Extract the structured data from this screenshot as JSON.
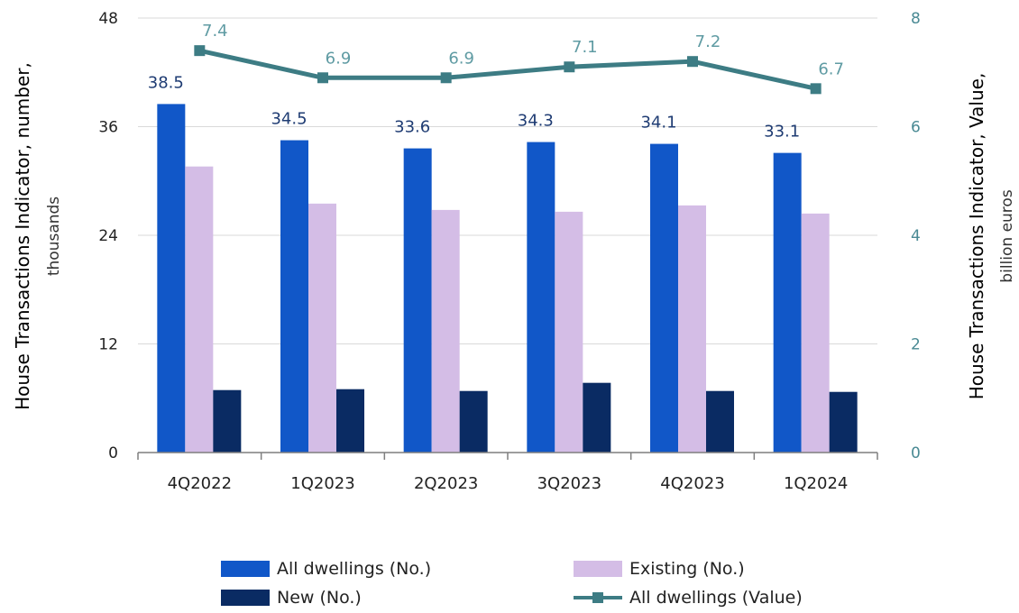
{
  "chart_data": {
    "type": "bar",
    "categories": [
      "4Q2022",
      "1Q2023",
      "2Q2023",
      "3Q2023",
      "4Q2023",
      "1Q2024"
    ],
    "series": [
      {
        "name": "All dwellings (No.)",
        "type": "bar",
        "axis": "left",
        "color": "#1157c8",
        "values": [
          38.5,
          34.5,
          33.6,
          34.3,
          34.1,
          33.1
        ]
      },
      {
        "name": "Existing (No.)",
        "type": "bar",
        "axis": "left",
        "color": "#d4bde6",
        "values": [
          31.6,
          27.5,
          26.8,
          26.6,
          27.3,
          26.4
        ]
      },
      {
        "name": "New (No.)",
        "type": "bar",
        "axis": "left",
        "color": "#0a2b63",
        "values": [
          6.9,
          7.0,
          6.8,
          7.7,
          6.8,
          6.7
        ]
      },
      {
        "name": "All dwellings (Value)",
        "type": "line",
        "axis": "right",
        "color": "#3d7c84",
        "values": [
          7.4,
          6.9,
          6.9,
          7.1,
          7.2,
          6.7
        ]
      }
    ],
    "bar_labels": [
      "38.5",
      "34.5",
      "33.6",
      "34.3",
      "34.1",
      "33.1"
    ],
    "line_labels": [
      "7.4",
      "6.9",
      "6.9",
      "7.1",
      "7.2",
      "6.7"
    ],
    "ylabel_left": "House Transactions Indicator, number,",
    "ylabel_left_sub": "thousands",
    "ylabel_right": "House Transactions  Indicator, Value,",
    "ylabel_right_sub": "billion euros",
    "ylim_left": [
      0,
      48
    ],
    "yticks_left": [
      "0",
      "12",
      "24",
      "36",
      "48"
    ],
    "ylim_right": [
      0,
      8
    ],
    "yticks_right": [
      "0",
      "2",
      "4",
      "6",
      "8"
    ],
    "grid": true,
    "legend_position": "bottom"
  }
}
